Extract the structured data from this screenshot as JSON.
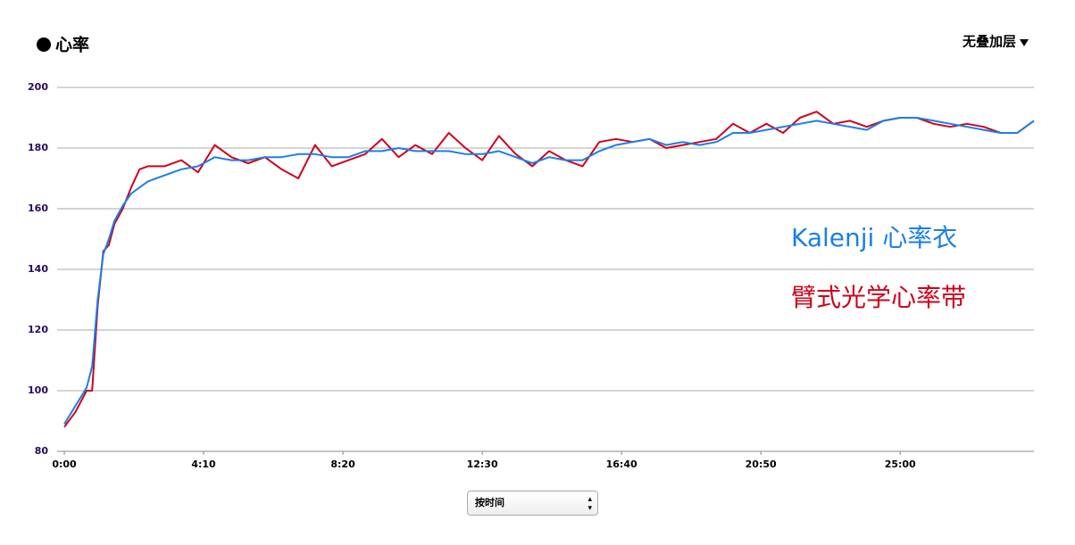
{
  "chart_data": {
    "type": "line",
    "title": "心率",
    "x": [
      0,
      20,
      40,
      50,
      60,
      70,
      80,
      90,
      105,
      120,
      135,
      150,
      180,
      210,
      240,
      270,
      300,
      330,
      360,
      390,
      420,
      450,
      480,
      510,
      540,
      570,
      600,
      630,
      660,
      690,
      720,
      750,
      780,
      810,
      840,
      870,
      900,
      930,
      960,
      990,
      1020,
      1050,
      1080,
      1110,
      1140,
      1170,
      1200,
      1230,
      1260,
      1290,
      1320,
      1350,
      1380,
      1410,
      1440,
      1470,
      1500,
      1530,
      1560,
      1590,
      1620,
      1650,
      1680,
      1710,
      1740
    ],
    "series": [
      {
        "name": "Kalenji 心率衣",
        "color": "#1a7fe8",
        "values": [
          89,
          95,
          101,
          108,
          130,
          145,
          150,
          156,
          161,
          165,
          167,
          169,
          171,
          173,
          174,
          177,
          176,
          176,
          177,
          177,
          178,
          178,
          177,
          177,
          179,
          179,
          180,
          179,
          179,
          179,
          178,
          178,
          179,
          177,
          175,
          177,
          176,
          176,
          179,
          181,
          182,
          183,
          181,
          182,
          181,
          182,
          185,
          185,
          186,
          187,
          188,
          189,
          188,
          187,
          186,
          189,
          190,
          190,
          189,
          188,
          187,
          186,
          185,
          185,
          189
        ]
      },
      {
        "name": "臂式光学心率带",
        "color": "#d0021b",
        "values": [
          88,
          93,
          100,
          100,
          128,
          146,
          148,
          155,
          160,
          167,
          173,
          174,
          174,
          176,
          172,
          181,
          177,
          175,
          177,
          173,
          170,
          181,
          174,
          176,
          178,
          183,
          177,
          181,
          178,
          185,
          180,
          176,
          184,
          178,
          174,
          179,
          176,
          174,
          182,
          183,
          182,
          183,
          180,
          181,
          182,
          183,
          188,
          185,
          188,
          185,
          190,
          192,
          188,
          189,
          187,
          189,
          190,
          190,
          188,
          187,
          188,
          187,
          185,
          185,
          189
        ]
      }
    ],
    "xlim": [
      0,
      1740
    ],
    "xticks": [
      {
        "value": 0,
        "label": "0:00"
      },
      {
        "value": 250,
        "label": "4:10"
      },
      {
        "value": 500,
        "label": "8:20"
      },
      {
        "value": 750,
        "label": "12:30"
      },
      {
        "value": 1000,
        "label": "16:40"
      },
      {
        "value": 1250,
        "label": "20:50"
      },
      {
        "value": 1500,
        "label": "25:00"
      }
    ],
    "ylim": [
      80,
      200
    ],
    "yticks": [
      80,
      100,
      120,
      140,
      160,
      180,
      200
    ],
    "grid": true
  },
  "controls": {
    "overlay": "无叠加层",
    "sort": "按时间"
  }
}
